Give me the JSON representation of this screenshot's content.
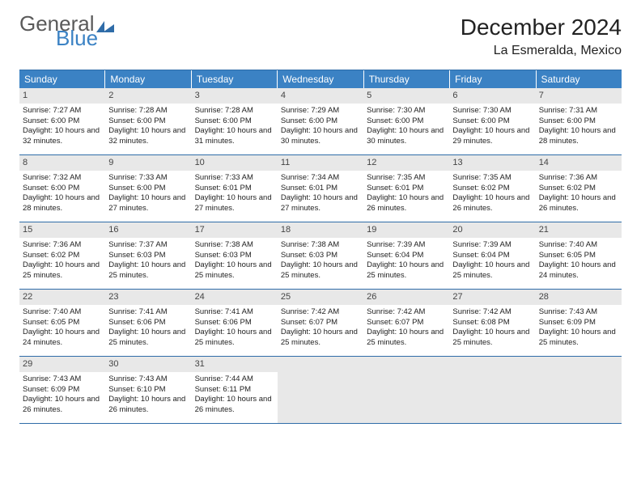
{
  "logo": {
    "part1": "General",
    "part2": "Blue"
  },
  "title": "December 2024",
  "location": "La Esmeralda, Mexico",
  "colors": {
    "header_bg": "#3b82c4",
    "border": "#2f6ca8",
    "daynum_bg": "#e8e8e8",
    "text": "#222222"
  },
  "typography": {
    "title_fontsize": 28,
    "location_fontsize": 16,
    "dayhead_fontsize": 12,
    "cell_fontsize": 9.5
  },
  "day_headers": [
    "Sunday",
    "Monday",
    "Tuesday",
    "Wednesday",
    "Thursday",
    "Friday",
    "Saturday"
  ],
  "weeks": [
    [
      {
        "n": "1",
        "sr": "7:27 AM",
        "ss": "6:00 PM",
        "dl": "10 hours and 32 minutes."
      },
      {
        "n": "2",
        "sr": "7:28 AM",
        "ss": "6:00 PM",
        "dl": "10 hours and 32 minutes."
      },
      {
        "n": "3",
        "sr": "7:28 AM",
        "ss": "6:00 PM",
        "dl": "10 hours and 31 minutes."
      },
      {
        "n": "4",
        "sr": "7:29 AM",
        "ss": "6:00 PM",
        "dl": "10 hours and 30 minutes."
      },
      {
        "n": "5",
        "sr": "7:30 AM",
        "ss": "6:00 PM",
        "dl": "10 hours and 30 minutes."
      },
      {
        "n": "6",
        "sr": "7:30 AM",
        "ss": "6:00 PM",
        "dl": "10 hours and 29 minutes."
      },
      {
        "n": "7",
        "sr": "7:31 AM",
        "ss": "6:00 PM",
        "dl": "10 hours and 28 minutes."
      }
    ],
    [
      {
        "n": "8",
        "sr": "7:32 AM",
        "ss": "6:00 PM",
        "dl": "10 hours and 28 minutes."
      },
      {
        "n": "9",
        "sr": "7:33 AM",
        "ss": "6:00 PM",
        "dl": "10 hours and 27 minutes."
      },
      {
        "n": "10",
        "sr": "7:33 AM",
        "ss": "6:01 PM",
        "dl": "10 hours and 27 minutes."
      },
      {
        "n": "11",
        "sr": "7:34 AM",
        "ss": "6:01 PM",
        "dl": "10 hours and 27 minutes."
      },
      {
        "n": "12",
        "sr": "7:35 AM",
        "ss": "6:01 PM",
        "dl": "10 hours and 26 minutes."
      },
      {
        "n": "13",
        "sr": "7:35 AM",
        "ss": "6:02 PM",
        "dl": "10 hours and 26 minutes."
      },
      {
        "n": "14",
        "sr": "7:36 AM",
        "ss": "6:02 PM",
        "dl": "10 hours and 26 minutes."
      }
    ],
    [
      {
        "n": "15",
        "sr": "7:36 AM",
        "ss": "6:02 PM",
        "dl": "10 hours and 25 minutes."
      },
      {
        "n": "16",
        "sr": "7:37 AM",
        "ss": "6:03 PM",
        "dl": "10 hours and 25 minutes."
      },
      {
        "n": "17",
        "sr": "7:38 AM",
        "ss": "6:03 PM",
        "dl": "10 hours and 25 minutes."
      },
      {
        "n": "18",
        "sr": "7:38 AM",
        "ss": "6:03 PM",
        "dl": "10 hours and 25 minutes."
      },
      {
        "n": "19",
        "sr": "7:39 AM",
        "ss": "6:04 PM",
        "dl": "10 hours and 25 minutes."
      },
      {
        "n": "20",
        "sr": "7:39 AM",
        "ss": "6:04 PM",
        "dl": "10 hours and 25 minutes."
      },
      {
        "n": "21",
        "sr": "7:40 AM",
        "ss": "6:05 PM",
        "dl": "10 hours and 24 minutes."
      }
    ],
    [
      {
        "n": "22",
        "sr": "7:40 AM",
        "ss": "6:05 PM",
        "dl": "10 hours and 24 minutes."
      },
      {
        "n": "23",
        "sr": "7:41 AM",
        "ss": "6:06 PM",
        "dl": "10 hours and 25 minutes."
      },
      {
        "n": "24",
        "sr": "7:41 AM",
        "ss": "6:06 PM",
        "dl": "10 hours and 25 minutes."
      },
      {
        "n": "25",
        "sr": "7:42 AM",
        "ss": "6:07 PM",
        "dl": "10 hours and 25 minutes."
      },
      {
        "n": "26",
        "sr": "7:42 AM",
        "ss": "6:07 PM",
        "dl": "10 hours and 25 minutes."
      },
      {
        "n": "27",
        "sr": "7:42 AM",
        "ss": "6:08 PM",
        "dl": "10 hours and 25 minutes."
      },
      {
        "n": "28",
        "sr": "7:43 AM",
        "ss": "6:09 PM",
        "dl": "10 hours and 25 minutes."
      }
    ],
    [
      {
        "n": "29",
        "sr": "7:43 AM",
        "ss": "6:09 PM",
        "dl": "10 hours and 26 minutes."
      },
      {
        "n": "30",
        "sr": "7:43 AM",
        "ss": "6:10 PM",
        "dl": "10 hours and 26 minutes."
      },
      {
        "n": "31",
        "sr": "7:44 AM",
        "ss": "6:11 PM",
        "dl": "10 hours and 26 minutes."
      },
      null,
      null,
      null,
      null
    ]
  ],
  "labels": {
    "sunrise": "Sunrise:",
    "sunset": "Sunset:",
    "daylight": "Daylight:"
  }
}
